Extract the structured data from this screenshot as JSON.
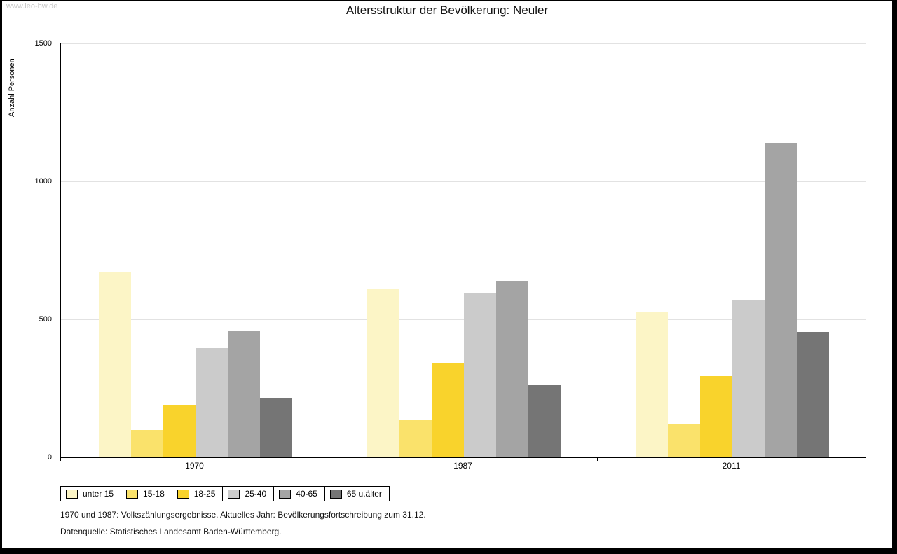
{
  "watermark": "www.leo-bw.de",
  "footnotes": [
    "1970 und 1987: Volkszählungsergebnisse. Aktuelles Jahr: Bevölkerungsfortschreibung zum 31.12.",
    "Datenquelle: Statistisches Landesamt Baden-Württemberg."
  ],
  "chart_data": {
    "type": "bar",
    "title": "Altersstruktur der Bevölkerung: Neuler",
    "ylabel": "Anzahl Personen",
    "xlabel": "",
    "ylim": [
      0,
      1500
    ],
    "yticks": [
      0,
      500,
      1000,
      1500
    ],
    "grid": "horizontal-light",
    "legend_position": "bottom-left",
    "categories": [
      "1970",
      "1987",
      "2011"
    ],
    "series": [
      {
        "name": "unter 15",
        "color": "#FCF5C6",
        "values": [
          670,
          610,
          525
        ]
      },
      {
        "name": "15-18",
        "color": "#FAE26B",
        "values": [
          100,
          135,
          120
        ]
      },
      {
        "name": "18-25",
        "color": "#F9D32C",
        "values": [
          190,
          340,
          295
        ]
      },
      {
        "name": "25-40",
        "color": "#CBCBCB",
        "values": [
          395,
          595,
          570
        ]
      },
      {
        "name": "40-65",
        "color": "#A4A4A4",
        "values": [
          460,
          640,
          1140
        ]
      },
      {
        "name": "65 u.älter",
        "color": "#757575",
        "values": [
          215,
          265,
          455
        ]
      }
    ]
  }
}
